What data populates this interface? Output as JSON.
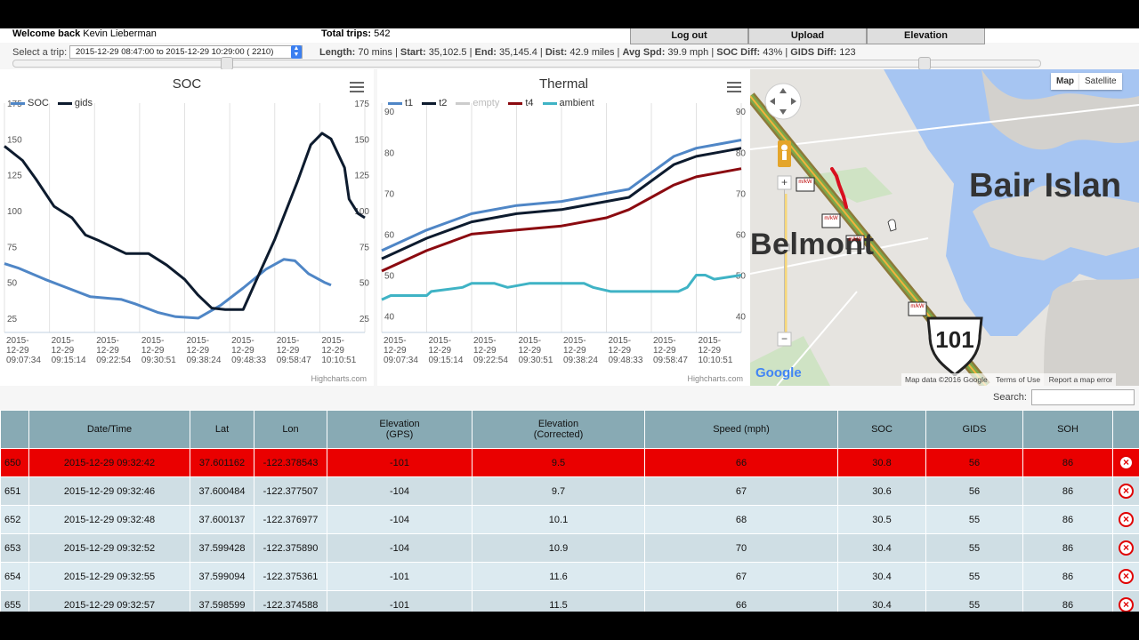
{
  "header": {
    "welcome_label": "Welcome back",
    "user_name": "Kevin Lieberman",
    "total_trips_label": "Total trips:",
    "total_trips_value": "542",
    "buttons": {
      "logout": "Log out",
      "upload": "Upload",
      "elevation": "Elevation"
    }
  },
  "trip": {
    "select_label": "Select a trip:",
    "selected": "2015-12-29 08:47:00 to 2015-12-29 10:29:00 ( 2210)",
    "length_label": "Length:",
    "length": "70 mins",
    "start_label": "Start:",
    "start": "35,102.5",
    "end_label": "End:",
    "end": "35,145.4",
    "dist_label": "Dist:",
    "dist": "42.9 miles",
    "avg_label": "Avg Spd:",
    "avg": "39.9 mph",
    "soc_diff_label": "SOC Diff:",
    "soc_diff": "43%",
    "gids_diff_label": "GIDS Diff:",
    "gids_diff": "123"
  },
  "range_slider": {
    "start_fraction": 0.208,
    "end_fraction": 0.886
  },
  "charts": {
    "credits": "Highcharts.com",
    "soc": {
      "title": "SOC",
      "legend": [
        {
          "name": "SOC",
          "color": "#4f86c6"
        },
        {
          "name": "gids",
          "color": "#0d1b2e"
        }
      ]
    },
    "thermal": {
      "title": "Thermal",
      "legend": [
        {
          "name": "t1",
          "color": "#4f86c6"
        },
        {
          "name": "t2",
          "color": "#0d1b2e"
        },
        {
          "name": "empty",
          "color": "#cccccc"
        },
        {
          "name": "t4",
          "color": "#8b0a10"
        },
        {
          "name": "ambient",
          "color": "#3fb3c5"
        }
      ]
    }
  },
  "chart_data": [
    {
      "type": "line",
      "title": "SOC",
      "x": [
        "2015-12-29 09:07:34",
        "2015-12-29 09:15:14",
        "2015-12-29 09:22:54",
        "2015-12-29 09:30:51",
        "2015-12-29 09:38:24",
        "2015-12-29 09:48:33",
        "2015-12-29 09:58:47",
        "2015-12-29 10:10:51"
      ],
      "ylim": [
        15,
        175
      ],
      "yticks": [
        25,
        50,
        75,
        100,
        125,
        150,
        175
      ],
      "series": [
        {
          "name": "SOC",
          "color": "#4f86c6",
          "points": [
            [
              0,
              63
            ],
            [
              0.3,
              60
            ],
            [
              0.9,
              52
            ],
            [
              1.4,
              46
            ],
            [
              1.9,
              40
            ],
            [
              2.6,
              38
            ],
            [
              2.9,
              35
            ],
            [
              3.4,
              29
            ],
            [
              3.8,
              26
            ],
            [
              4.3,
              25
            ],
            [
              4.8,
              34
            ],
            [
              5.3,
              46
            ],
            [
              5.8,
              59
            ],
            [
              6.2,
              66
            ],
            [
              6.45,
              65
            ],
            [
              6.75,
              56
            ],
            [
              7.1,
              50
            ],
            [
              7.25,
              48
            ]
          ]
        },
        {
          "name": "gids",
          "color": "#0d1b2e",
          "points": [
            [
              0,
              145
            ],
            [
              0.4,
              135
            ],
            [
              0.7,
              122
            ],
            [
              1.1,
              103
            ],
            [
              1.5,
              95
            ],
            [
              1.8,
              83
            ],
            [
              2.1,
              79
            ],
            [
              2.7,
              70
            ],
            [
              3.2,
              70
            ],
            [
              3.6,
              62
            ],
            [
              4.0,
              52
            ],
            [
              4.3,
              41
            ],
            [
              4.6,
              32
            ],
            [
              4.9,
              31
            ],
            [
              5.3,
              31
            ],
            [
              5.6,
              52
            ],
            [
              6.0,
              80
            ],
            [
              6.5,
              120
            ],
            [
              6.8,
              146
            ],
            [
              7.05,
              154
            ],
            [
              7.25,
              150
            ],
            [
              7.55,
              130
            ],
            [
              7.65,
              108
            ],
            [
              7.85,
              98
            ],
            [
              8.0,
              95
            ]
          ]
        }
      ]
    },
    {
      "type": "line",
      "title": "Thermal",
      "x": [
        "2015-12-29 09:07:34",
        "2015-12-29 09:15:14",
        "2015-12-29 09:22:54",
        "2015-12-29 09:30:51",
        "2015-12-29 09:38:24",
        "2015-12-29 09:48:33",
        "2015-12-29 09:58:47",
        "2015-12-29 10:10:51"
      ],
      "ylim": [
        36,
        92
      ],
      "yticks": [
        40,
        50,
        60,
        70,
        80,
        90
      ],
      "series": [
        {
          "name": "t1",
          "color": "#4f86c6",
          "points": [
            [
              0,
              56
            ],
            [
              1,
              61
            ],
            [
              2,
              65
            ],
            [
              3,
              67
            ],
            [
              4,
              68
            ],
            [
              5,
              70
            ],
            [
              5.5,
              71
            ],
            [
              6,
              75
            ],
            [
              6.5,
              79
            ],
            [
              7,
              81
            ],
            [
              7.5,
              82
            ],
            [
              8,
              83
            ]
          ]
        },
        {
          "name": "t2",
          "color": "#0d1b2e",
          "points": [
            [
              0,
              54
            ],
            [
              1,
              59
            ],
            [
              2,
              63
            ],
            [
              3,
              65
            ],
            [
              4,
              66
            ],
            [
              5,
              68
            ],
            [
              5.5,
              69
            ],
            [
              6,
              73
            ],
            [
              6.5,
              77
            ],
            [
              7,
              79
            ],
            [
              7.5,
              80
            ],
            [
              8,
              81
            ]
          ]
        },
        {
          "name": "empty",
          "color": "#cccccc",
          "points": []
        },
        {
          "name": "t4",
          "color": "#8b0a10",
          "points": [
            [
              0,
              51
            ],
            [
              1,
              56
            ],
            [
              2,
              60
            ],
            [
              3,
              61
            ],
            [
              4,
              62
            ],
            [
              5,
              64
            ],
            [
              5.5,
              66
            ],
            [
              6,
              69
            ],
            [
              6.5,
              72
            ],
            [
              7,
              74
            ],
            [
              7.5,
              75
            ],
            [
              8,
              76
            ]
          ]
        },
        {
          "name": "ambient",
          "color": "#3fb3c5",
          "points": [
            [
              0,
              44
            ],
            [
              0.2,
              45
            ],
            [
              1,
              45
            ],
            [
              1.1,
              46
            ],
            [
              1.8,
              47
            ],
            [
              2,
              48
            ],
            [
              2.5,
              48
            ],
            [
              2.8,
              47
            ],
            [
              3.3,
              48
            ],
            [
              4.5,
              48
            ],
            [
              4.7,
              47
            ],
            [
              5.1,
              46
            ],
            [
              6.6,
              46
            ],
            [
              6.8,
              47
            ],
            [
              7,
              50
            ],
            [
              7.2,
              50
            ],
            [
              7.4,
              49
            ],
            [
              8,
              50
            ]
          ]
        }
      ]
    }
  ],
  "map": {
    "type_map": "Map",
    "type_satellite": "Satellite",
    "label_bair": "Bair Islan",
    "label_belmont": "Belmont",
    "highway": "101",
    "marker_label": "m/kW",
    "zoom_in": "+",
    "zoom_out": "−",
    "attribution": "Map data ©2016 Google",
    "terms": "Terms of Use",
    "report": "Report a map error",
    "google": "Google"
  },
  "search": {
    "label": "Search:",
    "value": ""
  },
  "table": {
    "headers": [
      "",
      "Date/Time",
      "Lat",
      "Lon",
      "Elevation\n(GPS)",
      "Elevation\n(Corrected)",
      "Speed (mph)",
      "SOC",
      "GIDS",
      "SOH",
      ""
    ],
    "rows": [
      {
        "id": "650",
        "datetime": "2015-12-29 09:32:42",
        "lat": "37.601162",
        "lon": "-122.378543",
        "elev_gps": "-101",
        "elev_corr": "9.5",
        "speed": "66",
        "soc": "30.8",
        "gids": "56",
        "soh": "86",
        "selected": true
      },
      {
        "id": "651",
        "datetime": "2015-12-29 09:32:46",
        "lat": "37.600484",
        "lon": "-122.377507",
        "elev_gps": "-104",
        "elev_corr": "9.7",
        "speed": "67",
        "soc": "30.6",
        "gids": "56",
        "soh": "86"
      },
      {
        "id": "652",
        "datetime": "2015-12-29 09:32:48",
        "lat": "37.600137",
        "lon": "-122.376977",
        "elev_gps": "-104",
        "elev_corr": "10.1",
        "speed": "68",
        "soc": "30.5",
        "gids": "55",
        "soh": "86"
      },
      {
        "id": "653",
        "datetime": "2015-12-29 09:32:52",
        "lat": "37.599428",
        "lon": "-122.375890",
        "elev_gps": "-104",
        "elev_corr": "10.9",
        "speed": "70",
        "soc": "30.4",
        "gids": "55",
        "soh": "86"
      },
      {
        "id": "654",
        "datetime": "2015-12-29 09:32:55",
        "lat": "37.599094",
        "lon": "-122.375361",
        "elev_gps": "-101",
        "elev_corr": "11.6",
        "speed": "67",
        "soc": "30.4",
        "gids": "55",
        "soh": "86"
      },
      {
        "id": "655",
        "datetime": "2015-12-29 09:32:57",
        "lat": "37.598599",
        "lon": "-122.374588",
        "elev_gps": "-101",
        "elev_corr": "11.5",
        "speed": "66",
        "soc": "30.4",
        "gids": "55",
        "soh": "86"
      }
    ]
  }
}
